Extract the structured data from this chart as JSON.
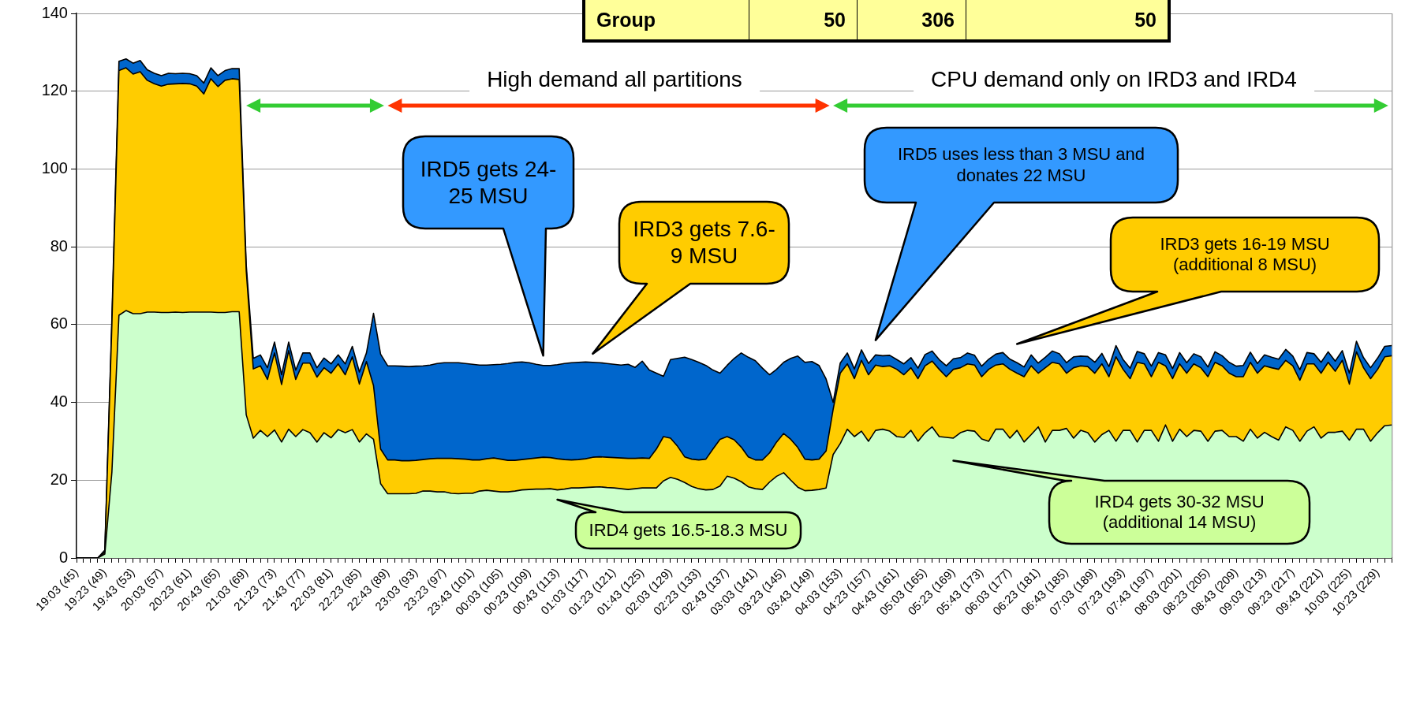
{
  "chart_data": {
    "type": "area",
    "stacked": true,
    "grid": "y",
    "ylim": [
      0,
      140
    ],
    "yticks": [
      0,
      20,
      40,
      60,
      80,
      100,
      120,
      140
    ],
    "categories": [
      "19:03 (45)",
      null,
      null,
      null,
      "19:23 (49)",
      null,
      null,
      null,
      "19:43 (53)",
      null,
      null,
      null,
      "20:03 (57)",
      null,
      null,
      null,
      "20:23 (61)",
      null,
      null,
      null,
      "20:43 (65)",
      null,
      null,
      null,
      "21:03 (69)",
      null,
      null,
      null,
      "21:23 (73)",
      null,
      null,
      null,
      "21:43 (77)",
      null,
      null,
      null,
      "22:03 (81)",
      null,
      null,
      null,
      "22:23 (85)",
      null,
      null,
      null,
      "22:43 (89)",
      null,
      null,
      null,
      "23:03 (93)",
      null,
      null,
      null,
      "23:23 (97)",
      null,
      null,
      null,
      "23:43 (101)",
      null,
      null,
      null,
      "00:03 (105)",
      null,
      null,
      null,
      "00:23 (109)",
      null,
      null,
      null,
      "00:43 (113)",
      null,
      null,
      null,
      "01:03 (117)",
      null,
      null,
      null,
      "01:23 (121)",
      null,
      null,
      null,
      "01:43 (125)",
      null,
      null,
      null,
      "02:03 (129)",
      null,
      null,
      null,
      "02:23 (133)",
      null,
      null,
      null,
      "02:43 (137)",
      null,
      null,
      null,
      "03:03 (141)",
      null,
      null,
      null,
      "03:23 (145)",
      null,
      null,
      null,
      "03:43 (149)",
      null,
      null,
      null,
      "04:03 (153)",
      null,
      null,
      null,
      "04:23 (157)",
      null,
      null,
      null,
      "04:43 (161)",
      null,
      null,
      null,
      "05:03 (165)",
      null,
      null,
      null,
      "05:23 (169)",
      null,
      null,
      null,
      "05:43 (173)",
      null,
      null,
      null,
      "06:03 (177)",
      null,
      null,
      null,
      "06:23 (181)",
      null,
      null,
      null,
      "06:43 (185)",
      null,
      null,
      null,
      "07:03 (189)",
      null,
      null,
      null,
      "07:23 (193)",
      null,
      null,
      null,
      "07:43 (197)",
      null,
      null,
      null,
      "08:03 (201)",
      null,
      null,
      null,
      "08:23 (205)",
      null,
      null,
      null,
      "08:43 (209)",
      null,
      null,
      null,
      "09:03 (213)",
      null,
      null,
      null,
      "09:23 (217)",
      null,
      null,
      null,
      "09:43 (221)",
      null,
      null,
      null,
      "10:03 (225)",
      null,
      null,
      null,
      "10:23 (229)",
      null,
      null
    ],
    "series": [
      {
        "color": "#ccffcc",
        "values": [
          0,
          0,
          0,
          0,
          1,
          22,
          62.4,
          63.6,
          62.8,
          62.8,
          63.2,
          63.2,
          63.1,
          63.1,
          63.2,
          63.1,
          63.2,
          63.2,
          63.2,
          63.2,
          63.1,
          63.1,
          63.3,
          63.3,
          36.8,
          30.8,
          32.8,
          31.2,
          32.9,
          29.8,
          33.1,
          31.2,
          33,
          32.2,
          29.8,
          32.2,
          30.9,
          33,
          32.2,
          33,
          29.8,
          31.9,
          30.5,
          19.1,
          16.5,
          16.5,
          16.5,
          16.5,
          16.6,
          17.2,
          17.2,
          17,
          17,
          16.6,
          16.5,
          16.6,
          16.6,
          17.2,
          17.4,
          17.2,
          17,
          17,
          17.2,
          17.5,
          17.6,
          17.7,
          17.7,
          17.8,
          17.5,
          17.7,
          18,
          18,
          18.1,
          18.2,
          18.3,
          18.1,
          18,
          17.8,
          17.6,
          17.8,
          18,
          18,
          18,
          19.8,
          20.7,
          20.2,
          19.4,
          18.4,
          17.8,
          17.5,
          17.6,
          18.5,
          21,
          20.5,
          19.6,
          18.3,
          17.8,
          17.6,
          19.5,
          21,
          21.9,
          20,
          18.2,
          17.3,
          17.4,
          17.6,
          18,
          26.6,
          29.4,
          33.1,
          31.2,
          32.6,
          30,
          32.8,
          33.1,
          32.6,
          31.2,
          31,
          32.8,
          30,
          32.2,
          33.7,
          31.2,
          31,
          30.8,
          32.2,
          32.8,
          32.6,
          30.6,
          30,
          33.1,
          33.1,
          30.8,
          32.8,
          29.8,
          31.7,
          33.7,
          29.8,
          32.8,
          32.8,
          33.3,
          30.8,
          32.8,
          32.2,
          29.8,
          31.7,
          32.8,
          30,
          32.8,
          32.8,
          29.8,
          32.8,
          32.8,
          30,
          34.2,
          30,
          33.1,
          31.2,
          32.8,
          32.6,
          30,
          32.6,
          32.8,
          31.2,
          31.2,
          30,
          33.1,
          30.8,
          32.3,
          31.2,
          30.3,
          33.7,
          32.8,
          30,
          32.6,
          33.7,
          30.8,
          32.3,
          32.3,
          32.6,
          30.3,
          33.1,
          33.1,
          30,
          32.2,
          34,
          34.2
        ]
      },
      {
        "color": "#ffcc00",
        "values": [
          0,
          0,
          0,
          0,
          0.5,
          38,
          62.9,
          62.4,
          61.6,
          62.2,
          59.6,
          58.7,
          58.2,
          58.7,
          58.7,
          58.9,
          58.7,
          58.1,
          56.1,
          60,
          58.1,
          59.7,
          59.9,
          59.7,
          37,
          17.8,
          16.6,
          14.7,
          19.8,
          14.8,
          20.2,
          14.7,
          17.1,
          17.9,
          16.7,
          16.7,
          16.6,
          16.9,
          14.9,
          18.7,
          14.9,
          18.6,
          13.8,
          8.9,
          8.7,
          8.7,
          8.5,
          8.5,
          8.5,
          8.1,
          8.3,
          8.6,
          8.6,
          9,
          9,
          8.8,
          8.6,
          8,
          8.1,
          8.5,
          8.4,
          8.1,
          7.9,
          7.8,
          7.9,
          8,
          8.2,
          8,
          8,
          7.6,
          7.2,
          7.3,
          7.4,
          7.7,
          7.7,
          7.8,
          7.8,
          7.9,
          8,
          7.8,
          7.7,
          7.6,
          10,
          11.4,
          10.1,
          8.5,
          6.6,
          7,
          7.4,
          7.9,
          10.4,
          12,
          10.2,
          9.9,
          8.9,
          7.7,
          7.4,
          7.6,
          7.5,
          8.8,
          10.1,
          10.5,
          10.2,
          8.1,
          7.8,
          7.8,
          9.5,
          11.6,
          18.1,
          16.8,
          14.9,
          18.2,
          17.1,
          16.8,
          16.1,
          16.8,
          17.3,
          16.1,
          16.1,
          16.1,
          17.2,
          16.9,
          17.3,
          15.6,
          17.7,
          16.7,
          17.1,
          17,
          16,
          18.5,
          16.5,
          16.8,
          17.7,
          14.7,
          16.8,
          17.7,
          13.8,
          19.1,
          17.5,
          17.1,
          14.2,
          18.1,
          16.6,
          17,
          17.7,
          18.2,
          13.8,
          21.7,
          15.7,
          13.3,
          20.5,
          17.1,
          13.8,
          20.3,
          15.2,
          16.1,
          16.8,
          16.3,
          17.1,
          16.3,
          16.6,
          17.7,
          16.6,
          16.3,
          15.4,
          16.6,
          17.2,
          16.7,
          17.1,
          17.7,
          18.2,
          17.1,
          16.6,
          15.7,
          17.3,
          16.2,
          16.7,
          18,
          15.7,
          18.2,
          14.4,
          19.9,
          15.8,
          16.1,
          16.3,
          17.7,
          17.8
        ]
      },
      {
        "color": "#0066cc",
        "values": [
          0,
          0,
          0,
          0,
          0.5,
          1.5,
          2.4,
          2.3,
          2.8,
          2.9,
          2.7,
          2.7,
          2.7,
          2.8,
          2.6,
          2.6,
          2.6,
          2.7,
          2.8,
          2.8,
          2.8,
          2.5,
          2.6,
          2.8,
          1.5,
          2.7,
          2.8,
          3,
          2.8,
          2.5,
          2.2,
          2.4,
          2.6,
          2.6,
          2.4,
          2.5,
          2.4,
          2.3,
          2.8,
          2.7,
          3.1,
          2.2,
          18.6,
          24.4,
          24.2,
          24.2,
          24.3,
          24.2,
          24.2,
          24.1,
          24.1,
          24.4,
          24.6,
          24.6,
          24.7,
          24.6,
          24.6,
          24.4,
          24.1,
          24,
          24.4,
          24.9,
          25.2,
          25.1,
          24.7,
          24.1,
          23.6,
          23.7,
          24.2,
          24.7,
          25,
          25,
          24.9,
          24.4,
          24.2,
          24.1,
          24,
          23.9,
          24.2,
          23.4,
          24.9,
          22.7,
          19.5,
          15.5,
          20.2,
          22.6,
          25.6,
          25.6,
          25.1,
          24.1,
          20.3,
          17,
          18.3,
          20.9,
          24.2,
          25.6,
          25.5,
          23.6,
          20.1,
          18.7,
          18.3,
          20.8,
          23.5,
          24.9,
          25.3,
          24.1,
          18.5,
          1.8,
          2.6,
          2.8,
          2.5,
          2.7,
          2.9,
          2.6,
          2.8,
          2.7,
          2.5,
          2.8,
          2.6,
          2.7,
          2.9,
          2.6,
          2.5,
          2.8,
          2.7,
          2.6,
          2.8,
          2.5,
          2.7,
          2.6,
          2.8,
          2.9,
          2.6,
          2.7,
          2.5,
          2.8,
          2.6,
          2.7,
          2.9,
          2.6,
          2.7,
          2.8,
          2.5,
          2.6,
          2.8,
          2.7,
          2.6,
          2.9,
          2.5,
          2.7,
          2.8,
          2.6,
          2.7,
          2.5,
          2.8,
          2.6,
          2.9,
          2.7,
          2.6,
          2.8,
          2.5,
          2.7,
          2.6,
          2.8,
          2.7,
          2.9,
          2.6,
          2.5,
          2.8,
          2.7,
          2.6,
          2.8,
          2.5,
          2.7,
          2.9,
          2.6,
          2.8,
          2.7,
          2.6,
          2.5,
          2.8,
          2.7,
          2.6,
          2.8,
          2.9,
          2.7,
          2.6
        ]
      }
    ],
    "annotations": [
      "Group",
      "50",
      "306",
      "50",
      "High demand all partitions",
      "CPU demand only on IRD3 and IRD4",
      "IRD5 gets 24-25 MSU",
      "IRD3 gets 7.6-9 MSU",
      "IRD5 uses less than 3 MSU and donates 22 MSU",
      "IRD3 gets 16-19 MSU (additional 8 MSU)",
      "IRD4 gets 16.5-18.3 MSU",
      "IRD4 gets 30-32 MSU (additional 14 MSU)"
    ]
  }
}
